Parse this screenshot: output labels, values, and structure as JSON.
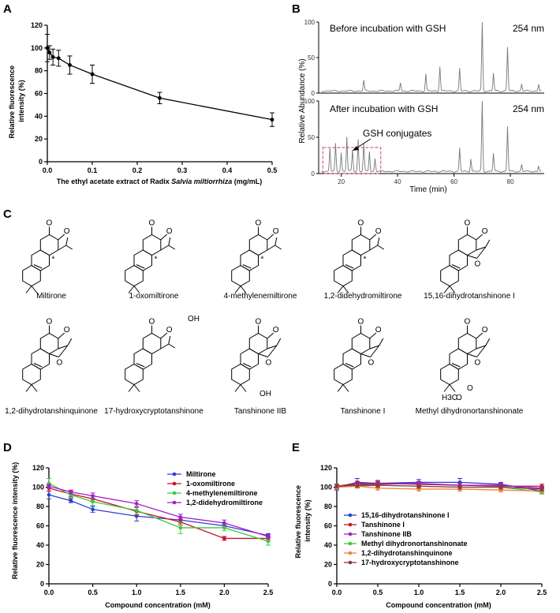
{
  "panel_labels": [
    "A",
    "B",
    "C",
    "D",
    "E"
  ],
  "chart_data": [
    {
      "panel": "A",
      "type": "line",
      "ylabel": "Relative fluorescence intensity (%)",
      "xlabel_prefix": "The ethyl acetate extract of Radix ",
      "xlabel_italic": "Salvia miltiorrhiza",
      "xlabel_suffix": " (mg/mL)",
      "xlim": [
        0,
        0.5
      ],
      "ylim": [
        0,
        120
      ],
      "xticks": [
        "0.0",
        "0.1",
        "0.2",
        "0.3",
        "0.4",
        "0.5"
      ],
      "yticks": [
        "0",
        "20",
        "40",
        "60",
        "80",
        "100",
        "120"
      ],
      "x": [
        0,
        0.005,
        0.0125,
        0.025,
        0.05,
        0.1,
        0.25,
        0.5
      ],
      "y": [
        100,
        96,
        92,
        91,
        85,
        77,
        56,
        37
      ],
      "err": [
        12,
        6,
        7,
        7,
        8,
        8,
        5,
        6
      ],
      "color": "#000000"
    },
    {
      "panel": "B",
      "type": "line",
      "ylabel": "Relative Abundance (%)",
      "xlabel": "Time (min)",
      "xlim": [
        12,
        92
      ],
      "xticks": [
        "20",
        "40",
        "60",
        "80"
      ],
      "yticks": [
        "0",
        "50",
        "100"
      ],
      "top_title": "Before incubation with GSH",
      "bottom_title": "After incubation with GSH",
      "wavelength": "254 nm",
      "annotation": "GSH conjugates",
      "peaks_before": [
        [
          28,
          15
        ],
        [
          41,
          12
        ],
        [
          50,
          24
        ],
        [
          55,
          35
        ],
        [
          62,
          32
        ],
        [
          70,
          100
        ],
        [
          74,
          25
        ],
        [
          79,
          62
        ],
        [
          84,
          10
        ],
        [
          90,
          10
        ]
      ],
      "peaks_after": [
        [
          16,
          32
        ],
        [
          18,
          38
        ],
        [
          20,
          26
        ],
        [
          22,
          48
        ],
        [
          24,
          30
        ],
        [
          26,
          44
        ],
        [
          28,
          38
        ],
        [
          30,
          28
        ],
        [
          32,
          18
        ],
        [
          62,
          32
        ],
        [
          66,
          18
        ],
        [
          70,
          100
        ],
        [
          74,
          25
        ],
        [
          79,
          62
        ],
        [
          84,
          10
        ],
        [
          90,
          8
        ]
      ],
      "color": "#777777"
    },
    {
      "panel": "D",
      "type": "line",
      "ylabel": "Relative fluorescence intensity (%)",
      "xlabel": "Compound concentration (mM)",
      "xlim": [
        0,
        2.5
      ],
      "ylim": [
        0,
        120
      ],
      "xticks": [
        "0.0",
        "0.5",
        "1.0",
        "1.5",
        "2.0",
        "2.5"
      ],
      "yticks": [
        "0",
        "20",
        "40",
        "60",
        "80",
        "100",
        "120"
      ],
      "x": [
        0,
        0.25,
        0.5,
        1.0,
        1.5,
        2.0,
        2.5
      ],
      "series": [
        {
          "name": "Miltirone",
          "color": "#2b3dd6",
          "values": [
            92,
            86,
            77,
            70,
            66,
            60,
            50
          ],
          "err": [
            4,
            2,
            3,
            5,
            3,
            2,
            2
          ]
        },
        {
          "name": "1-oxomiltirone",
          "color": "#c8102e",
          "values": [
            99,
            93,
            88,
            75,
            64,
            47,
            47
          ],
          "err": [
            3,
            3,
            3,
            4,
            3,
            2,
            2
          ]
        },
        {
          "name": "4-methylenemiltirone",
          "color": "#3cc83c",
          "values": [
            104,
            92,
            85,
            76,
            58,
            58,
            44
          ],
          "err": [
            5,
            3,
            4,
            4,
            6,
            3,
            4
          ]
        },
        {
          "name": "1,2-didehydromiltirone",
          "color": "#a020c8",
          "values": [
            101,
            95,
            91,
            83,
            69,
            63,
            49
          ],
          "err": [
            2,
            2,
            3,
            3,
            3,
            3,
            2
          ]
        }
      ]
    },
    {
      "panel": "E",
      "type": "line",
      "ylabel": "Relative fluorescence intensity (%)",
      "xlabel": "Compound concentration (mM)",
      "xlim": [
        0,
        2.5
      ],
      "ylim": [
        0,
        120
      ],
      "xticks": [
        "0.0",
        "0.5",
        "1.0",
        "1.5",
        "2.0",
        "2.5"
      ],
      "yticks": [
        "0",
        "20",
        "40",
        "60",
        "80",
        "100",
        "120"
      ],
      "x": [
        0,
        0.25,
        0.5,
        1.0,
        1.5,
        2.0,
        2.5
      ],
      "series": [
        {
          "name": "15,16-dihydrotanshinone I",
          "color": "#2b3dd6",
          "values": [
            100,
            105,
            104,
            105,
            105,
            103,
            96
          ],
          "err": [
            3,
            4,
            3,
            3,
            4,
            2,
            3
          ]
        },
        {
          "name": "Tanshinone I",
          "color": "#c8102e",
          "values": [
            101,
            104,
            104,
            103,
            102,
            101,
            101
          ],
          "err": [
            2,
            2,
            2,
            2,
            2,
            2,
            2
          ]
        },
        {
          "name": "Tanshinone IIB",
          "color": "#a020c8",
          "values": [
            100,
            103,
            103,
            104,
            102,
            102,
            99
          ],
          "err": [
            2,
            3,
            2,
            2,
            2,
            2,
            2
          ]
        },
        {
          "name": "Methyl dihydronortanshinonate",
          "color": "#3cc83c",
          "values": [
            100,
            101,
            102,
            101,
            100,
            100,
            95
          ],
          "err": [
            2,
            2,
            2,
            2,
            2,
            2,
            2
          ]
        },
        {
          "name": "1,2-dihydrotanshinquinone",
          "color": "#f0803c",
          "values": [
            100,
            101,
            99,
            98,
            98,
            97,
            96
          ],
          "err": [
            2,
            2,
            2,
            2,
            2,
            2,
            2
          ]
        },
        {
          "name": "17-hydroxycryptotanshinone",
          "color": "#8b3a3a",
          "values": [
            101,
            102,
            102,
            101,
            100,
            100,
            98
          ],
          "err": [
            2,
            2,
            2,
            2,
            2,
            2,
            2
          ]
        }
      ]
    }
  ],
  "structures": {
    "row1": [
      "Miltirone",
      "1-oxomiltirone",
      "4-methylenemiltirone",
      "1,2-didehydromiltirone",
      "15,16-dihydrotanshinone I"
    ],
    "row2": [
      "1,2-dihydrotanshinquinone",
      "17-hydroxycryptotanshinone",
      "Tanshinone IIB",
      "Tanshinone I",
      "Methyl dihydronortanshinonate"
    ],
    "atoms": {
      "O": "O",
      "OH": "OH",
      "star": "*",
      "ester_h3c": "H3C",
      "ester_o": "O",
      "ester_o2": "O"
    }
  }
}
